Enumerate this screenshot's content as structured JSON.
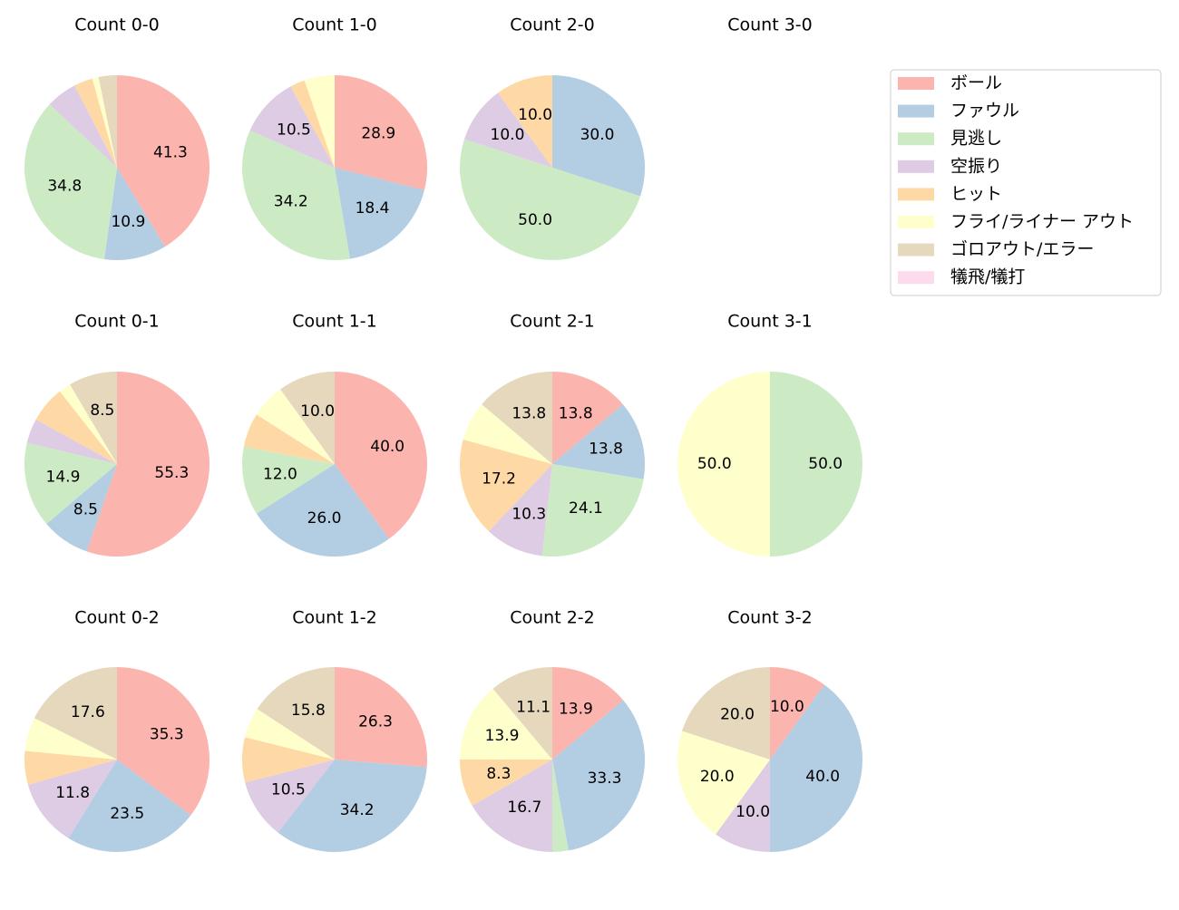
{
  "legend": {
    "labels": [
      "ボール",
      "ファウル",
      "見逃し",
      "空振り",
      "ヒット",
      "フライ/ライナー アウト",
      "ゴロアウト/エラー",
      "犠飛/犠打"
    ],
    "colors": [
      "#fbb4ae",
      "#b3cde3",
      "#ccebc5",
      "#decbe4",
      "#fed9a6",
      "#ffffcc",
      "#e5d8bd",
      "#fddaec"
    ]
  },
  "chart_data": [
    {
      "type": "pie",
      "title": "Count 0-0",
      "values": [
        41.3,
        10.9,
        34.8,
        5.4,
        3.3,
        1.1,
        3.2,
        0
      ],
      "value_labels": [
        "41.3",
        "10.9",
        "34.8",
        null,
        null,
        null,
        null,
        null
      ]
    },
    {
      "type": "pie",
      "title": "Count 1-0",
      "values": [
        28.9,
        18.4,
        34.2,
        10.5,
        2.6,
        5.3,
        0,
        0
      ],
      "value_labels": [
        "28.9",
        "18.4",
        "34.2",
        "10.5",
        null,
        null,
        null,
        null
      ]
    },
    {
      "type": "pie",
      "title": "Count 2-0",
      "values": [
        0,
        30.0,
        50.0,
        10.0,
        10.0,
        0,
        0,
        0
      ],
      "value_labels": [
        null,
        "30.0",
        "50.0",
        "10.0",
        "10.0",
        null,
        null,
        null
      ]
    },
    {
      "type": "pie",
      "title": "Count 3-0",
      "values": [],
      "value_labels": []
    },
    {
      "type": "pie",
      "title": "Count 0-1",
      "values": [
        55.3,
        8.5,
        14.9,
        4.3,
        6.4,
        2.1,
        8.5,
        0
      ],
      "value_labels": [
        "55.3",
        "8.5",
        "14.9",
        null,
        null,
        null,
        "8.5",
        null
      ]
    },
    {
      "type": "pie",
      "title": "Count 1-1",
      "values": [
        40.0,
        26.0,
        12.0,
        0,
        6.0,
        6.0,
        10.0,
        0
      ],
      "value_labels": [
        "40.0",
        "26.0",
        "12.0",
        null,
        null,
        null,
        "10.0",
        null
      ]
    },
    {
      "type": "pie",
      "title": "Count 2-1",
      "values": [
        13.8,
        13.8,
        24.1,
        10.3,
        17.2,
        6.9,
        13.8,
        0
      ],
      "value_labels": [
        "13.8",
        "13.8",
        "24.1",
        "10.3",
        "17.2",
        null,
        "13.8",
        null
      ]
    },
    {
      "type": "pie",
      "title": "Count 3-1",
      "values": [
        0,
        0,
        50.0,
        0,
        0,
        50.0,
        0,
        0
      ],
      "value_labels": [
        null,
        null,
        "50.0",
        null,
        null,
        "50.0",
        null,
        null
      ]
    },
    {
      "type": "pie",
      "title": "Count 0-2",
      "values": [
        35.3,
        23.5,
        0,
        11.8,
        5.9,
        5.9,
        17.6,
        0
      ],
      "value_labels": [
        "35.3",
        "23.5",
        null,
        "11.8",
        null,
        null,
        "17.6",
        null
      ]
    },
    {
      "type": "pie",
      "title": "Count 1-2",
      "values": [
        26.3,
        34.2,
        0,
        10.5,
        7.9,
        5.3,
        15.8,
        0
      ],
      "value_labels": [
        "26.3",
        "34.2",
        null,
        "10.5",
        null,
        null,
        "15.8",
        null
      ]
    },
    {
      "type": "pie",
      "title": "Count 2-2",
      "values": [
        13.9,
        33.3,
        2.8,
        16.7,
        8.3,
        13.9,
        11.1,
        0
      ],
      "value_labels": [
        "13.9",
        "33.3",
        null,
        "16.7",
        "8.3",
        "13.9",
        "11.1",
        null
      ]
    },
    {
      "type": "pie",
      "title": "Count 3-2",
      "values": [
        10.0,
        40.0,
        0,
        10.0,
        0,
        20.0,
        20.0,
        0
      ],
      "value_labels": [
        "10.0",
        "40.0",
        null,
        "10.0",
        null,
        "20.0",
        "20.0",
        null
      ]
    }
  ]
}
